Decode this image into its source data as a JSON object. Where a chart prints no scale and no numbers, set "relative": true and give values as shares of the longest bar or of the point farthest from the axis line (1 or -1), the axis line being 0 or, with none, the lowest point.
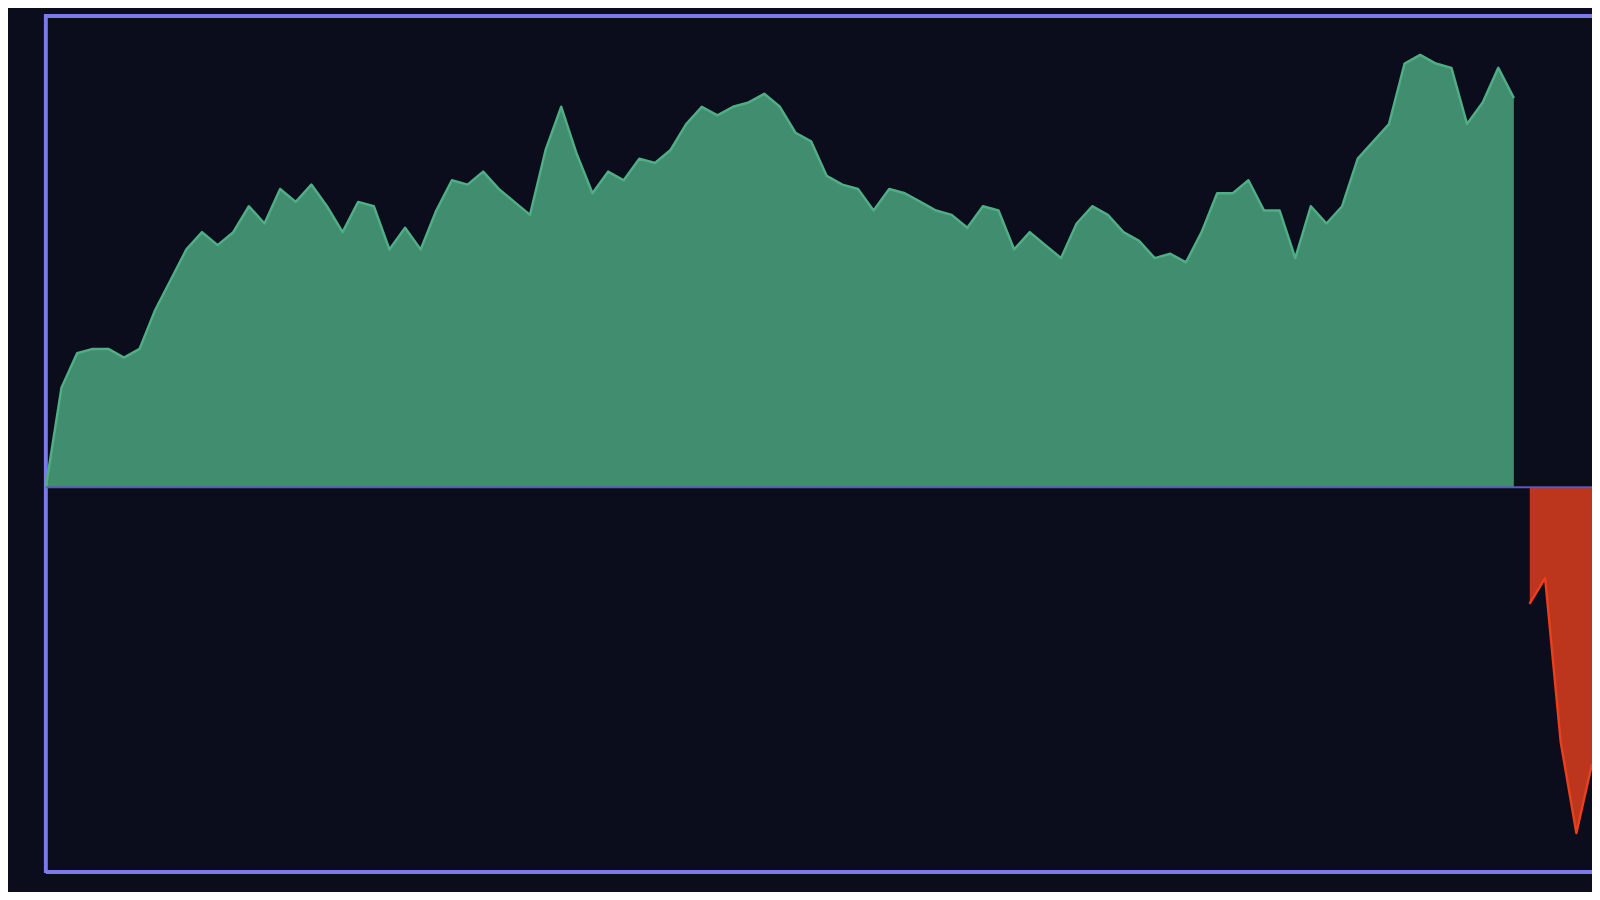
{
  "chart_data": {
    "type": "area",
    "relative": true,
    "legend": false,
    "ref_lines": [
      {
        "axis": "y",
        "value": 0,
        "color": "#5a5ab8"
      }
    ],
    "categories": [
      null,
      null,
      null,
      null,
      null,
      null,
      null,
      null,
      null,
      null,
      null,
      null,
      null,
      null,
      null,
      null,
      null,
      null,
      null,
      null,
      null,
      null,
      null,
      null,
      null,
      null,
      null,
      null,
      null,
      null,
      null,
      null,
      null,
      null,
      null,
      null,
      null,
      null,
      null,
      null,
      null,
      null,
      null,
      null,
      null,
      null,
      null,
      null,
      null,
      null,
      null,
      null,
      null,
      null,
      null,
      null,
      null,
      null,
      null,
      null,
      null,
      null,
      null,
      null,
      null,
      null,
      null,
      null,
      null,
      null,
      null,
      null,
      null,
      null,
      null,
      null,
      null,
      null,
      null,
      null,
      null,
      null,
      null,
      null,
      null,
      null,
      null,
      null,
      null,
      null,
      null,
      null,
      null,
      null,
      null,
      null,
      null,
      null,
      null,
      null
    ],
    "series": [
      {
        "color": "#4fae84",
        "values": [
          0,
          0.23,
          0.31,
          0.32,
          0.32,
          0.3,
          0.32,
          0.41,
          0.48,
          0.55,
          0.59,
          0.56,
          0.59,
          0.65,
          0.61,
          0.69,
          0.66,
          0.7,
          0.65,
          0.59,
          0.66,
          0.65,
          0.55,
          0.6,
          0.55,
          0.64,
          0.71,
          0.7,
          0.73,
          0.69,
          0.66,
          0.63,
          0.78,
          0.88,
          0.77,
          0.68,
          0.73,
          0.71,
          0.76,
          0.75,
          0.78,
          0.84,
          0.88,
          0.86,
          0.88,
          0.89,
          0.91,
          0.88,
          0.82,
          0.8,
          0.72,
          0.7,
          0.69,
          0.64,
          0.69,
          0.68,
          0.66,
          0.64,
          0.63,
          0.6,
          0.65,
          0.64,
          0.55,
          0.59,
          0.56,
          0.53,
          0.61,
          0.65,
          0.63,
          0.59,
          0.57,
          0.53,
          0.54,
          0.52,
          0.59,
          0.68,
          0.68,
          0.71,
          0.64,
          0.64,
          0.53,
          0.65,
          0.61,
          0.65,
          0.76,
          0.8,
          0.84,
          0.98,
          1,
          0.98,
          0.97,
          0.84,
          0.89,
          0.97,
          0.9,
          null,
          null,
          null,
          null,
          null
        ]
      },
      {
        "color": "#e8401e",
        "values": [
          null,
          null,
          null,
          null,
          null,
          null,
          null,
          null,
          null,
          null,
          null,
          null,
          null,
          null,
          null,
          null,
          null,
          null,
          null,
          null,
          null,
          null,
          null,
          null,
          null,
          null,
          null,
          null,
          null,
          null,
          null,
          null,
          null,
          null,
          null,
          null,
          null,
          null,
          null,
          null,
          null,
          null,
          null,
          null,
          null,
          null,
          null,
          null,
          null,
          null,
          null,
          null,
          null,
          null,
          null,
          null,
          null,
          null,
          null,
          null,
          null,
          null,
          null,
          null,
          null,
          null,
          null,
          null,
          null,
          null,
          null,
          null,
          null,
          null,
          null,
          null,
          null,
          null,
          null,
          null,
          null,
          null,
          null,
          null,
          null,
          null,
          null,
          null,
          null,
          null,
          null,
          null,
          null,
          null,
          null,
          -0.27,
          -0.21,
          -0.59,
          -0.8,
          -0.64
        ]
      }
    ]
  }
}
